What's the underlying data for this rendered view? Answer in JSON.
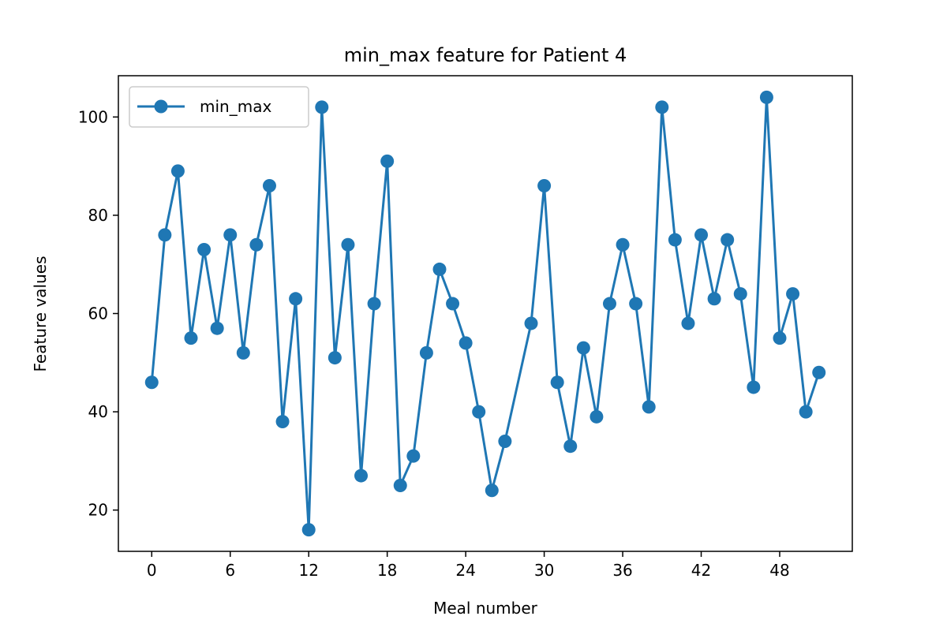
{
  "chart_data": {
    "type": "line",
    "title": "min_max feature for Patient 4",
    "xlabel": "Meal number",
    "ylabel": "Feature values",
    "x_ticks": [
      0,
      6,
      12,
      18,
      24,
      30,
      36,
      42,
      48
    ],
    "y_ticks": [
      20,
      40,
      60,
      80,
      100
    ],
    "xlim": [
      -2.55,
      53.55
    ],
    "ylim": [
      11.6,
      108.4
    ],
    "grid": false,
    "legend_position": "top-left",
    "series": [
      {
        "name": "min_max",
        "color": "#1f77b4",
        "marker": "circle",
        "x": [
          0,
          1,
          2,
          3,
          4,
          5,
          6,
          7,
          8,
          9,
          10,
          11,
          12,
          13,
          14,
          15,
          16,
          17,
          18,
          19,
          20,
          21,
          22,
          23,
          24,
          25,
          26,
          27,
          29,
          30,
          31,
          32,
          33,
          34,
          35,
          36,
          37,
          38,
          39,
          40,
          41,
          42,
          43,
          44,
          45,
          46,
          47,
          48,
          49,
          50,
          51
        ],
        "values": [
          46,
          76,
          89,
          55,
          73,
          57,
          76,
          52,
          74,
          86,
          38,
          63,
          16,
          102,
          51,
          74,
          27,
          62,
          91,
          25,
          31,
          52,
          69,
          62,
          54,
          40,
          24,
          34,
          58,
          86,
          46,
          33,
          53,
          39,
          62,
          74,
          62,
          41,
          102,
          75,
          58,
          76,
          63,
          75,
          64,
          45,
          104,
          55,
          64,
          40,
          48
        ]
      }
    ]
  }
}
